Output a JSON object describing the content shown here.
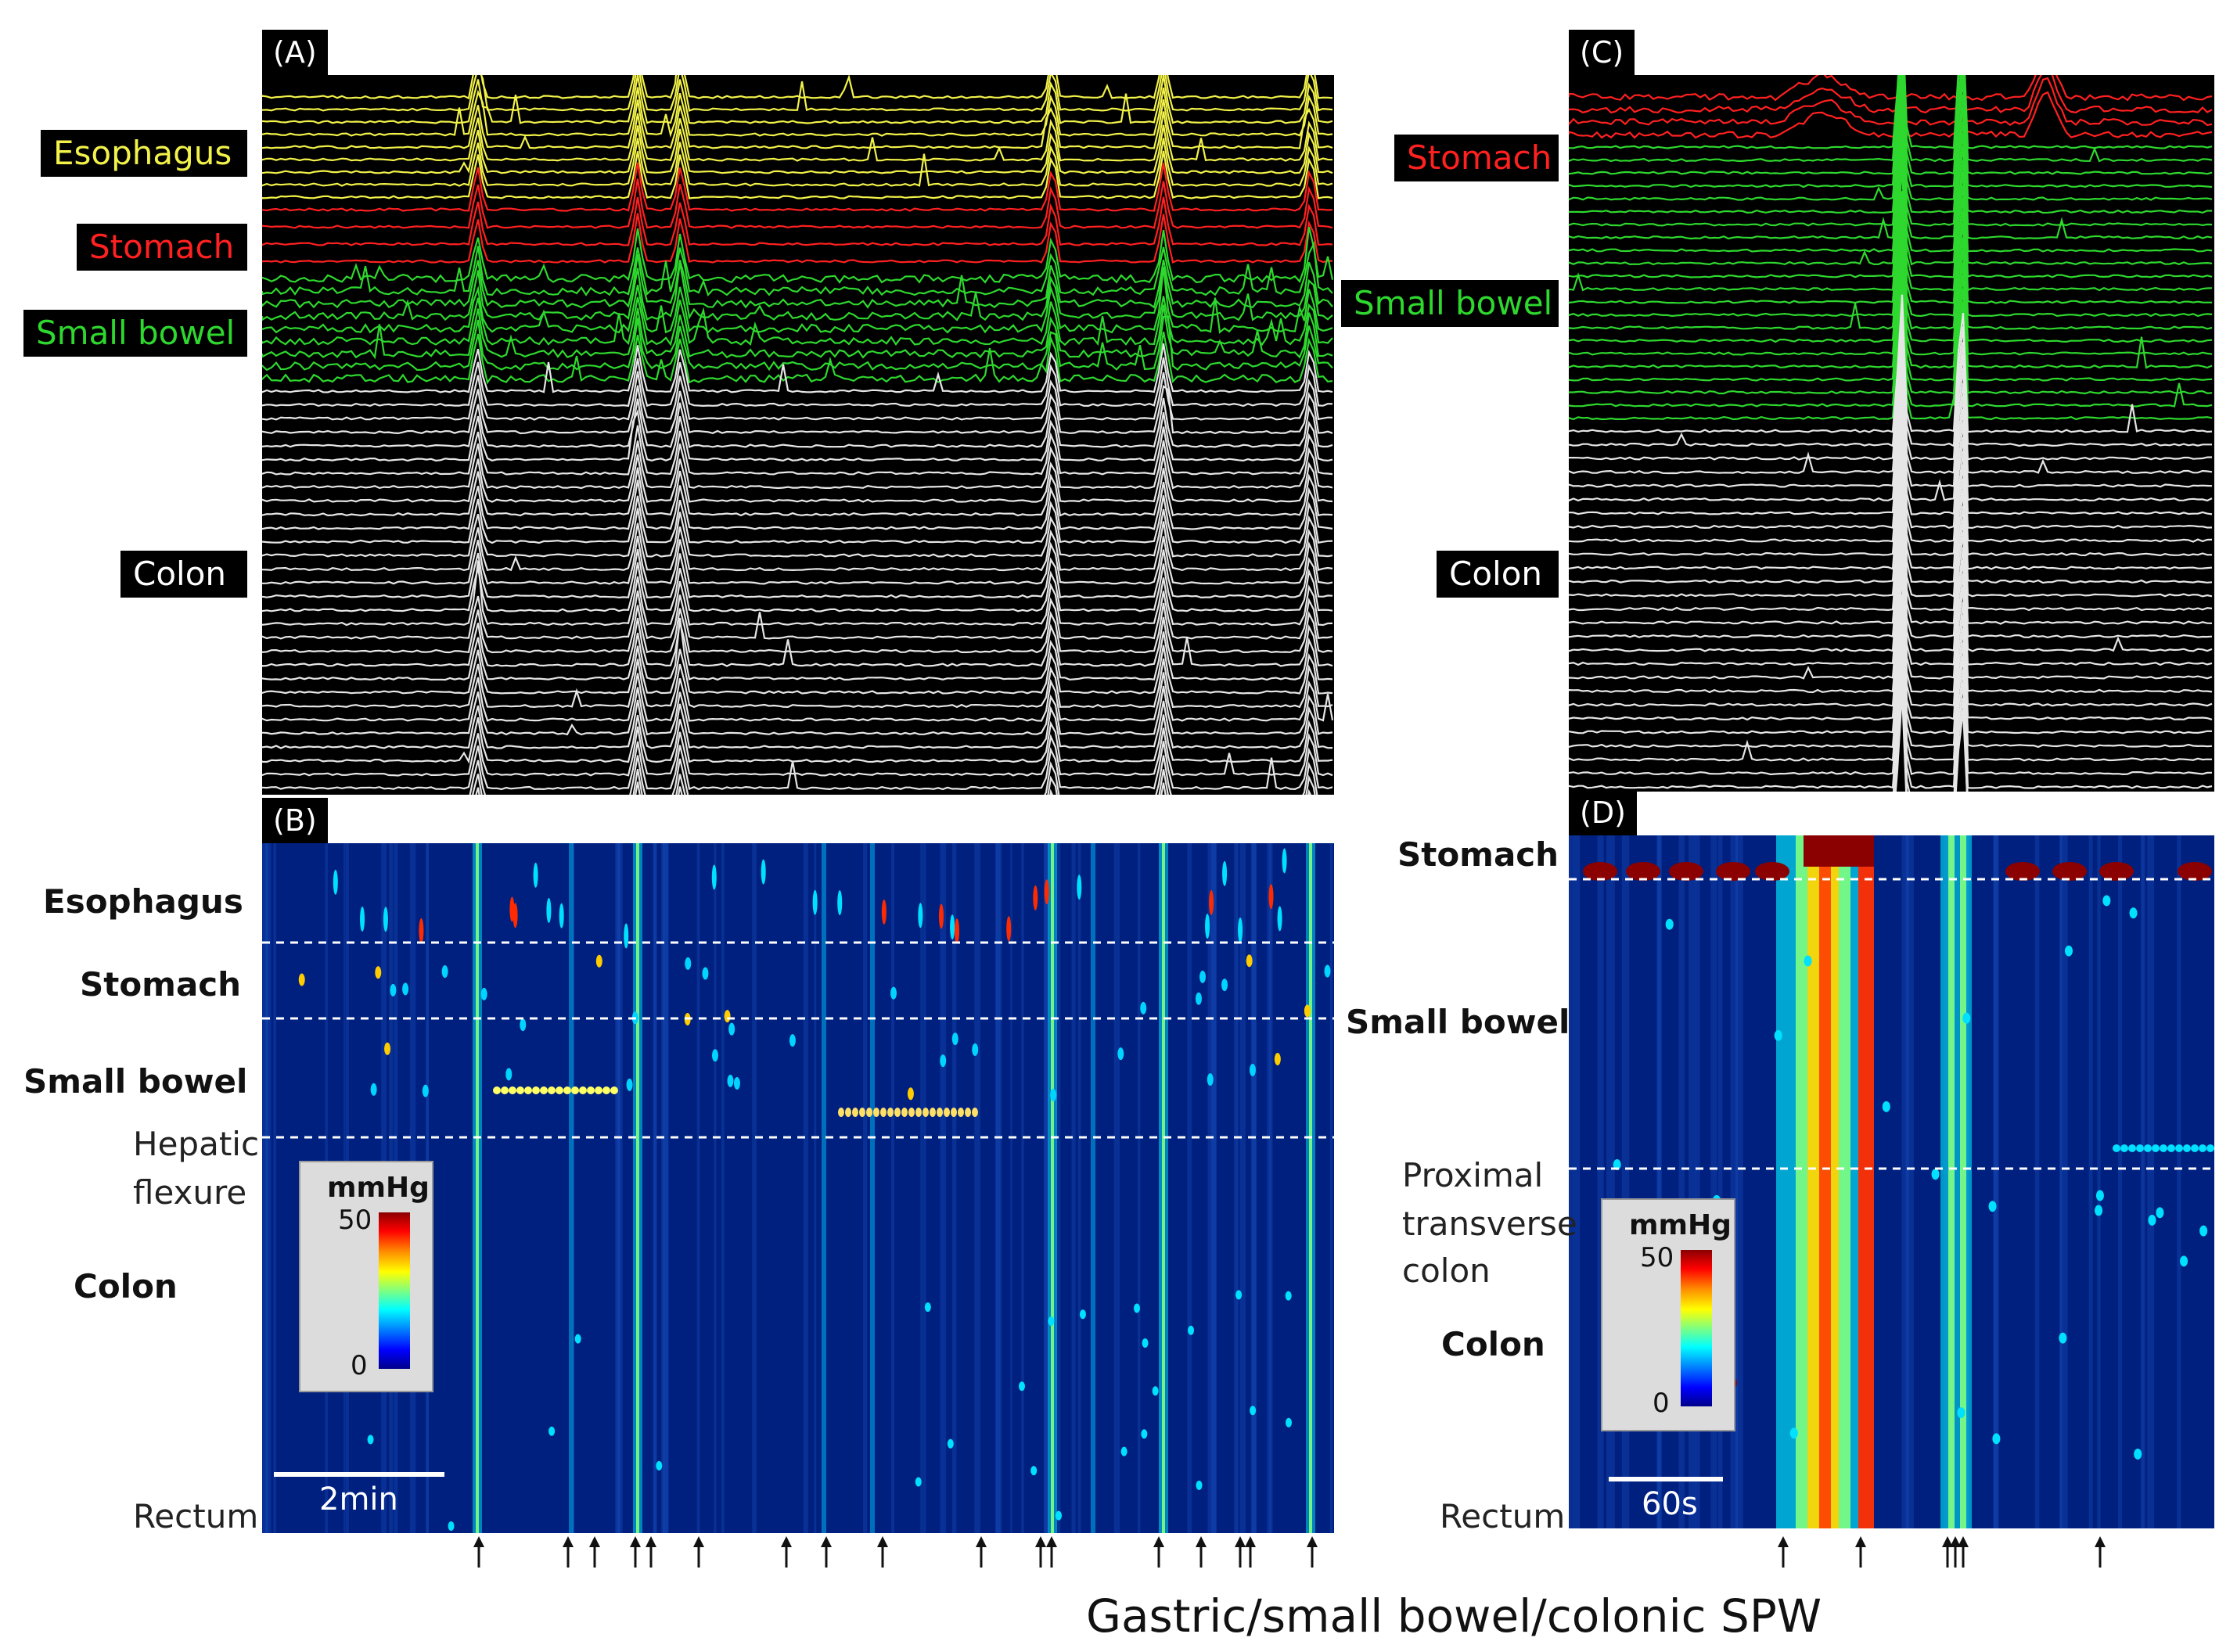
{
  "panels": {
    "a": "(A)",
    "b": "(B)",
    "c": "(C)",
    "d": "(D)"
  },
  "traces_left": [
    {
      "label": "Esophagus",
      "color": "#f2f24a"
    },
    {
      "label": "Stomach",
      "color": "#ff2020"
    },
    {
      "label": "Small bowel",
      "color": "#2ed82e"
    },
    {
      "label": "Colon",
      "color": "#e6e6e6"
    }
  ],
  "traces_right": [
    {
      "label": "Stomach",
      "color": "#ff2020"
    },
    {
      "label": "Small bowel",
      "color": "#2ed82e"
    },
    {
      "label": "Colon",
      "color": "#e6e6e6"
    }
  ],
  "heat_left_labels": {
    "esophagus": "Esophagus",
    "stomach": "Stomach",
    "small_bowel": "Small bowel",
    "hepatic1": "Hepatic",
    "hepatic2": "flexure",
    "colon": "Colon",
    "rectum": "Rectum"
  },
  "heat_right_labels": {
    "stomach": "Stomach",
    "small_bowel": "Small bowel",
    "ptc1": "Proximal",
    "ptc2": "transverse",
    "ptc3": "colon",
    "colon": "Colon",
    "rectum": "Rectum"
  },
  "colorbar": {
    "unit": "mmHg",
    "max": "50",
    "min": "0"
  },
  "scale_left": "2min",
  "scale_right": "60s",
  "caption": "Gastric/small bowel/colonic SPW",
  "colors": {
    "heat_bg": "#00207f",
    "trace_bg": "#000000"
  }
}
